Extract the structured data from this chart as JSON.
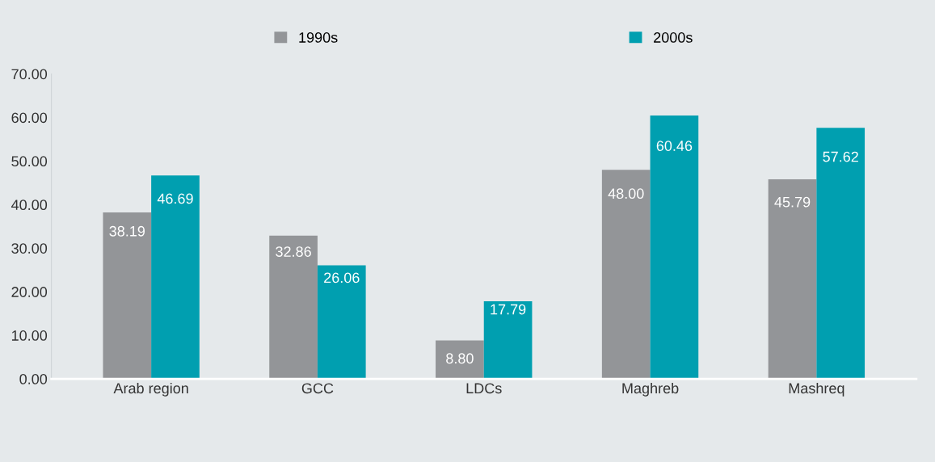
{
  "chart_data": {
    "type": "bar",
    "categories": [
      "Arab region",
      "GCC",
      "LDCs",
      "Maghreb",
      "Mashreq"
    ],
    "series": [
      {
        "name": "1990s",
        "color": "#939598",
        "values": [
          38.19,
          32.86,
          8.8,
          48.0,
          45.79
        ],
        "value_labels": [
          "38.19",
          "32.86",
          "8.80",
          "48.00",
          "45.79"
        ]
      },
      {
        "name": "2000s",
        "color": "#009fb0",
        "values": [
          46.69,
          26.06,
          17.79,
          60.46,
          57.62
        ],
        "value_labels": [
          "46.69",
          "26.06",
          "17.79",
          "60.46",
          "57.62"
        ]
      }
    ],
    "ylim": [
      0,
      70
    ],
    "yticks": [
      {
        "value": 0,
        "label": "0.00"
      },
      {
        "value": 10,
        "label": "10.00"
      },
      {
        "value": 20,
        "label": "20.00"
      },
      {
        "value": 30,
        "label": "30.00"
      },
      {
        "value": 40,
        "label": "40.00"
      },
      {
        "value": 50,
        "label": "50.00"
      },
      {
        "value": 60,
        "label": "60.00"
      },
      {
        "value": 70,
        "label": "70.00"
      }
    ],
    "grid": false,
    "legend": "top"
  }
}
